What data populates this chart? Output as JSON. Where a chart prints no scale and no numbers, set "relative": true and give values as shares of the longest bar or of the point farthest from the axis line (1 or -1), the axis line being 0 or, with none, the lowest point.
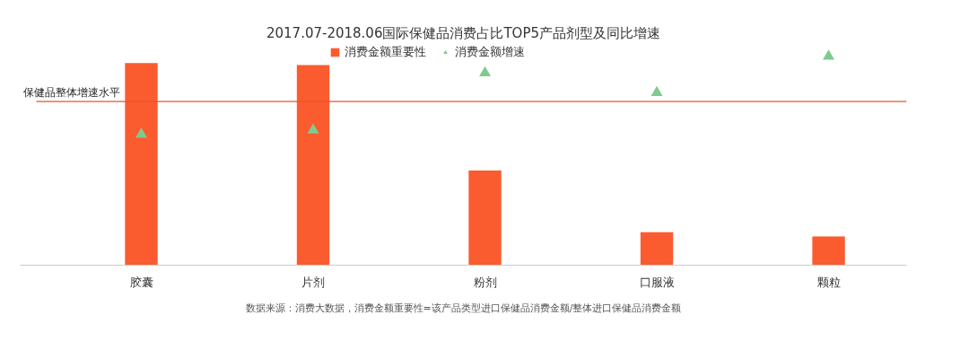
{
  "chart_data": {
    "type": "bar",
    "title": "2017.07-2018.06国际保健品消费占比TOP5产品剂型及同比增速",
    "categories": [
      "胶囊",
      "片剂",
      "粉剂",
      "口服液",
      "颗粒"
    ],
    "relative": true,
    "legend": "top",
    "grid": false,
    "marker": "triangle",
    "series": [
      {
        "name": "消费金额重要性",
        "color": "#fa5c2f",
        "values": [
          0.968,
          0.958,
          0.453,
          0.158,
          0.137
        ]
      },
      {
        "name": "消费金额增速",
        "type": "scatter",
        "color": "#7fcb8e",
        "values": [
          0.626,
          0.647,
          0.921,
          0.826,
          1.0
        ]
      }
    ],
    "ref_lines": [
      {
        "axis": "y",
        "value": 0.784,
        "label": "保健品整体增速水平",
        "color": "#e8532b"
      }
    ],
    "annotations": [
      "数据来源：消费大数据，消费金额重要性=该产品类型进口保健品消费金额/整体进口保健品消费金额"
    ]
  }
}
